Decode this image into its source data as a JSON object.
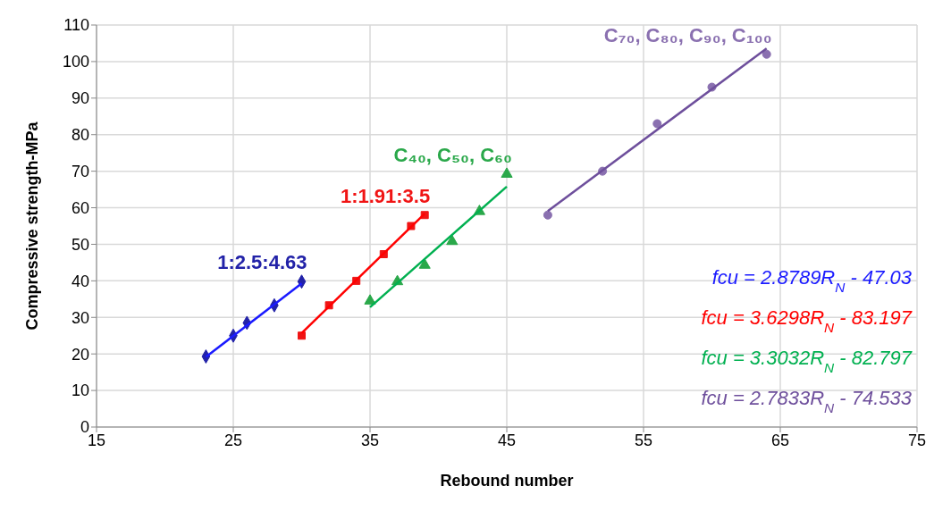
{
  "chart_data": {
    "type": "scatter",
    "xlabel": "Rebound number",
    "ylabel": "Compressive strength-MPa",
    "xlim": [
      15,
      75
    ],
    "xticks": [
      15,
      25,
      35,
      45,
      55,
      65,
      75
    ],
    "ylim": [
      0,
      110
    ],
    "yticks": [
      0,
      10,
      20,
      30,
      40,
      50,
      60,
      70,
      80,
      90,
      100,
      110
    ],
    "grid": true,
    "series": [
      {
        "name": "1:2.5:4.63",
        "marker": "diamond",
        "color": "#2222a8",
        "x": [
          23,
          25,
          26,
          28,
          30
        ],
        "values": [
          19.3,
          25,
          28.5,
          33.3,
          39.8
        ]
      },
      {
        "name": "1:1.91:3.5",
        "marker": "square",
        "color": "#f01414",
        "x": [
          30,
          32,
          34,
          36,
          38,
          39
        ],
        "values": [
          25,
          33.3,
          40,
          47.3,
          55,
          58
        ]
      },
      {
        "name": "C₄₀, C₅₀, C₆₀",
        "marker": "triangle",
        "color": "#2aa84a",
        "x": [
          35,
          37,
          39,
          41,
          43,
          45
        ],
        "values": [
          34.5,
          39.8,
          44.3,
          50.8,
          59,
          69.2
        ]
      },
      {
        "name": "C₇₀, C₈₀, C₉₀, C₁₀₀",
        "marker": "circle",
        "color": "#8a70b0",
        "x": [
          48,
          52,
          56,
          60,
          64
        ],
        "values": [
          58,
          70,
          83,
          93,
          102
        ]
      },
      {
        "name": "fcu = 2.8789R$_{N}$ - 47.03",
        "type": "line",
        "color": "#1a1aff",
        "x": [
          23,
          30
        ],
        "values": [
          19.2,
          39.3
        ]
      },
      {
        "name": "fcu = 3.6298R$_{N}$ - 83.197",
        "type": "line",
        "color": "#ff0000",
        "x": [
          30,
          39
        ],
        "values": [
          25.7,
          58.4
        ]
      },
      {
        "name": "fcu = 3.3032R$_{N}$ - 82.797",
        "type": "line",
        "color": "#00b050",
        "x": [
          35,
          45
        ],
        "values": [
          32.8,
          65.8
        ]
      },
      {
        "name": "fcu = 2.7833R$_{N}$ - 74.533",
        "type": "line",
        "color": "#6e4f9c",
        "x": [
          48,
          64
        ],
        "values": [
          59.1,
          103.6
        ]
      }
    ]
  }
}
